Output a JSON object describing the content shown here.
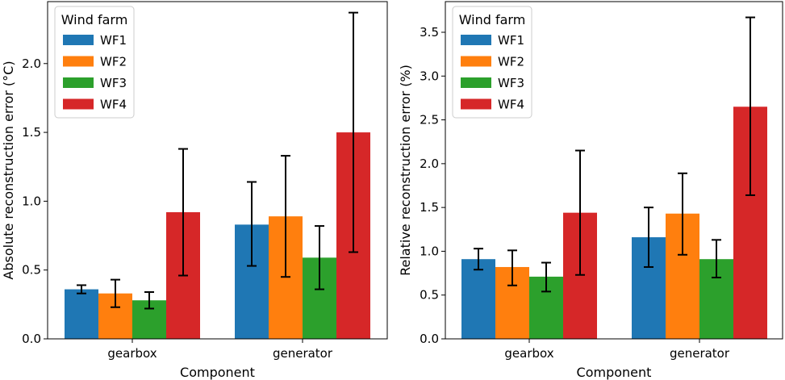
{
  "chart_data": [
    {
      "type": "bar",
      "xlabel": "Component",
      "ylabel": "Absolute reconstruction error (°C)",
      "categories": [
        "gearbox",
        "generator"
      ],
      "ylim": [
        0,
        2.45
      ],
      "yticks": [
        0.0,
        0.5,
        1.0,
        1.5,
        2.0
      ],
      "yticklabels": [
        "0.0",
        "0.5",
        "1.0",
        "1.5",
        "2.0"
      ],
      "legend": {
        "title": "Wind farm",
        "position": "top-left"
      },
      "series": [
        {
          "name": "WF1",
          "color": "#1f77b4",
          "values": [
            0.36,
            0.83
          ],
          "err_low": [
            0.33,
            0.53
          ],
          "err_high": [
            0.39,
            1.14
          ]
        },
        {
          "name": "WF2",
          "color": "#ff7f0e",
          "values": [
            0.33,
            0.89
          ],
          "err_low": [
            0.23,
            0.45
          ],
          "err_high": [
            0.43,
            1.33
          ]
        },
        {
          "name": "WF3",
          "color": "#2ca02c",
          "values": [
            0.28,
            0.59
          ],
          "err_low": [
            0.22,
            0.36
          ],
          "err_high": [
            0.34,
            0.82
          ]
        },
        {
          "name": "WF4",
          "color": "#d62728",
          "values": [
            0.92,
            1.5
          ],
          "err_low": [
            0.46,
            0.63
          ],
          "err_high": [
            1.38,
            2.37
          ]
        }
      ]
    },
    {
      "type": "bar",
      "xlabel": "Component",
      "ylabel": "Relative reconstruction error (%)",
      "categories": [
        "gearbox",
        "generator"
      ],
      "ylim": [
        0,
        3.85
      ],
      "yticks": [
        0.0,
        0.5,
        1.0,
        1.5,
        2.0,
        2.5,
        3.0,
        3.5
      ],
      "yticklabels": [
        "0.0",
        "0.5",
        "1.0",
        "1.5",
        "2.0",
        "2.5",
        "3.0",
        "3.5"
      ],
      "legend": {
        "title": "Wind farm",
        "position": "top-left"
      },
      "series": [
        {
          "name": "WF1",
          "color": "#1f77b4",
          "values": [
            0.91,
            1.16
          ],
          "err_low": [
            0.79,
            0.82
          ],
          "err_high": [
            1.03,
            1.5
          ]
        },
        {
          "name": "WF2",
          "color": "#ff7f0e",
          "values": [
            0.82,
            1.43
          ],
          "err_low": [
            0.61,
            0.96
          ],
          "err_high": [
            1.01,
            1.89
          ]
        },
        {
          "name": "WF3",
          "color": "#2ca02c",
          "values": [
            0.71,
            0.91
          ],
          "err_low": [
            0.54,
            0.7
          ],
          "err_high": [
            0.87,
            1.13
          ]
        },
        {
          "name": "WF4",
          "color": "#d62728",
          "values": [
            1.44,
            2.65
          ],
          "err_low": [
            0.73,
            1.64
          ],
          "err_high": [
            2.15,
            3.67
          ]
        }
      ]
    }
  ]
}
